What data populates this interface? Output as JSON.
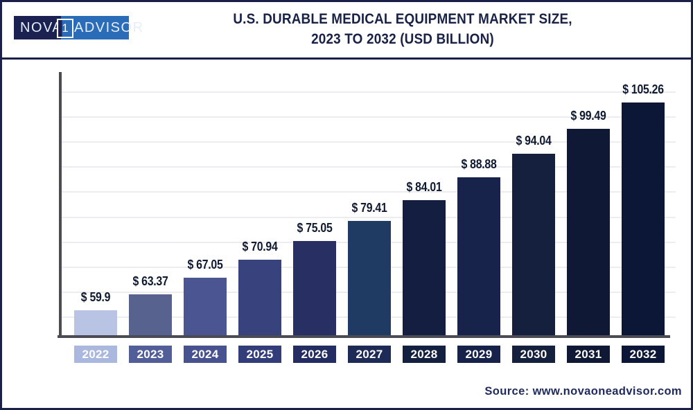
{
  "header": {
    "logo": {
      "part_nova": "NOVA",
      "part_one": "1",
      "part_advisor": "ADVISOR",
      "navy_color": "#1b2150",
      "blue_color": "#2b6cb8"
    },
    "title_line1": "U.S. DURABLE MEDICAL EQUIPMENT MARKET SIZE,",
    "title_line2": "2023 TO 2032 (USD BILLION)",
    "title_color": "#1a2147"
  },
  "footer": {
    "source": "Source: www.novaoneadvisor.com",
    "source_color": "#1e2a5e"
  },
  "chart_data": {
    "type": "bar",
    "title": "U.S. Durable Medical Equipment Market Size, 2023 to 2032 (USD Billion)",
    "unit": "USD Billion",
    "categories": [
      "2022",
      "2023",
      "2024",
      "2025",
      "2026",
      "2027",
      "2028",
      "2029",
      "2030",
      "2031",
      "2032"
    ],
    "values": [
      59.9,
      63.37,
      67.05,
      70.94,
      75.05,
      79.41,
      84.01,
      88.88,
      94.04,
      99.49,
      105.26
    ],
    "value_labels": [
      "$ 59.9",
      "$ 63.37",
      "$ 67.05",
      "$ 70.94",
      "$ 75.05",
      "$ 79.41",
      "$ 84.01",
      "$ 88.88",
      "$ 94.04",
      "$ 99.49",
      "$ 105.26"
    ],
    "bar_colors": [
      "#b9c3e4",
      "#57628f",
      "#4a5591",
      "#38427d",
      "#272f63",
      "#1f3a63",
      "#131e41",
      "#17234a",
      "#15203f",
      "#0f1834",
      "#0c1737"
    ],
    "label_box_colors": [
      "#aab7de",
      "#525e97",
      "#47528e",
      "#333d7a",
      "#232d62",
      "#1d2b56",
      "#13203f",
      "#16224a",
      "#15203f",
      "#0f1834",
      "#0c1737"
    ],
    "ylim": [
      54.3,
      111.8
    ],
    "xlabel": "",
    "ylabel": "",
    "grid": true,
    "gridline_count": 10,
    "legend": "none",
    "axis_color": "#4b4b54",
    "gridline_color": "#ededf1",
    "value_label_color": "#0f1930"
  }
}
